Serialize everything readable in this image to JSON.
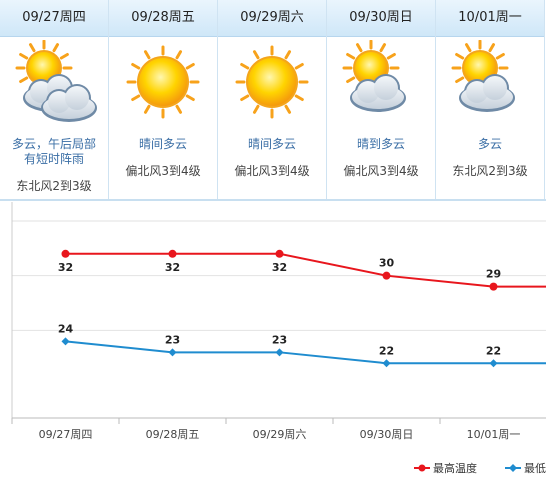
{
  "days": [
    {
      "date": "09/27周四",
      "condition": "多云，午后局部有短时阵雨",
      "wind": "东北风2到3级",
      "icon": "partly-cloudy-icon"
    },
    {
      "date": "09/28周五",
      "condition": "晴间多云",
      "wind": "偏北风3到4级",
      "icon": "sun-icon"
    },
    {
      "date": "09/29周六",
      "condition": "晴间多云",
      "wind": "偏北风3到4级",
      "icon": "sun-icon"
    },
    {
      "date": "09/30周日",
      "condition": "晴到多云",
      "wind": "偏北风3到4级",
      "icon": "partly-cloudy-icon"
    },
    {
      "date": "10/01周一",
      "condition": "多云",
      "wind": "东北风2到3级",
      "icon": "partly-cloudy-icon"
    }
  ],
  "chart_data": {
    "type": "line",
    "categories": [
      "09/27周四",
      "09/28周五",
      "09/29周六",
      "09/30周日",
      "10/01周一"
    ],
    "series": [
      {
        "name": "最高温度",
        "values": [
          32,
          32,
          32,
          30,
          29
        ],
        "color": "#e8161d"
      },
      {
        "name": "最低温度",
        "values": [
          24,
          23,
          23,
          22,
          22
        ],
        "color": "#1f8ccf"
      }
    ],
    "legend_visible_labels": [
      "最高温度",
      "最低"
    ],
    "ylim": [
      17,
      36
    ],
    "grid": true,
    "legend_position": "bottom-right"
  }
}
